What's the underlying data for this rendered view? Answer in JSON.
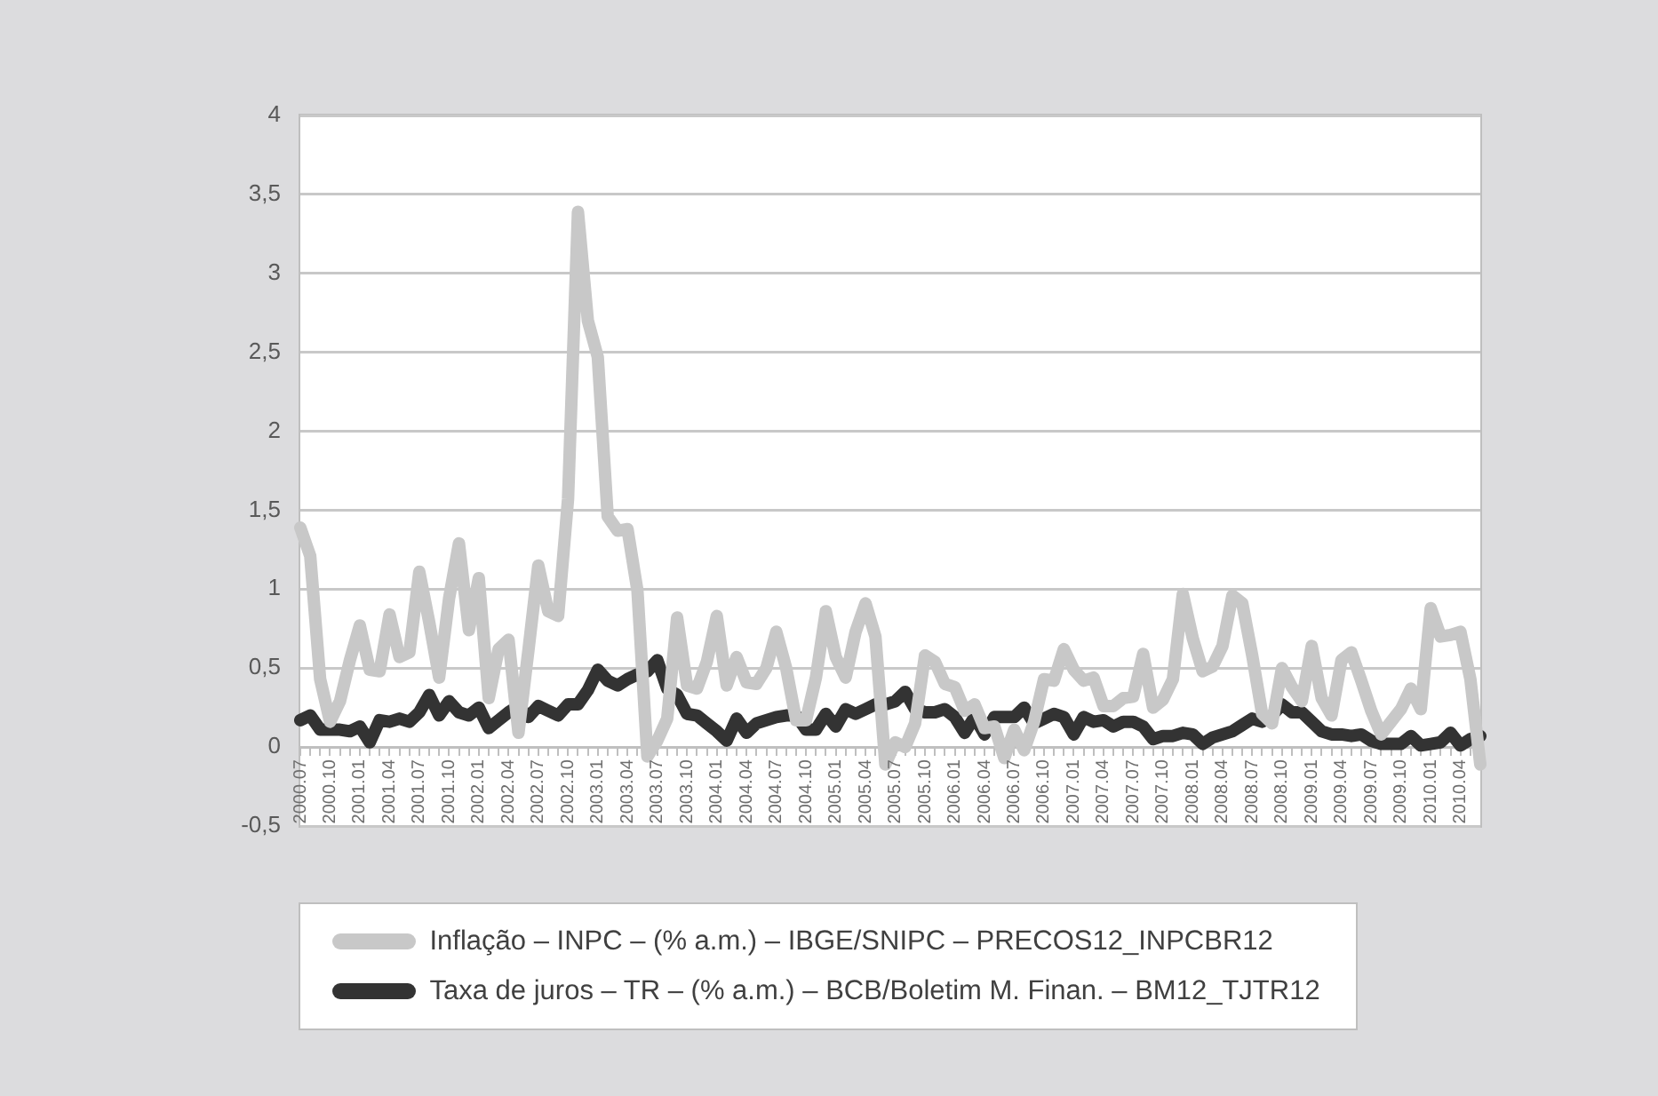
{
  "chart_data": {
    "type": "line",
    "categories": [
      "2000.07",
      null,
      null,
      "2000.10",
      null,
      null,
      "2001.01",
      null,
      null,
      "2001.04",
      null,
      null,
      "2001.07",
      null,
      null,
      "2001.10",
      null,
      null,
      "2002.01",
      null,
      null,
      "2002.04",
      null,
      null,
      "2002.07",
      null,
      null,
      "2002.10",
      null,
      null,
      "2003.01",
      null,
      null,
      "2003.04",
      null,
      null,
      "2003.07",
      null,
      null,
      "2003.10",
      null,
      null,
      "2004.01",
      null,
      null,
      "2004.04",
      null,
      null,
      "2004.07",
      null,
      null,
      "2004.10",
      null,
      null,
      "2005.01",
      null,
      null,
      "2005.04",
      null,
      null,
      "2005.07",
      null,
      null,
      "2005.10",
      null,
      null,
      "2006.01",
      null,
      null,
      "2006.04",
      null,
      null,
      "2006.07",
      null,
      null,
      "2006.10",
      null,
      null,
      "2007.01",
      null,
      null,
      "2007.04",
      null,
      null,
      "2007.07",
      null,
      null,
      "2007.10",
      null,
      null,
      "2008.01",
      null,
      null,
      "2008.04",
      null,
      null,
      "2008.07",
      null,
      null,
      "2008.10",
      null,
      null,
      "2009.01",
      null,
      null,
      "2009.04",
      null,
      null,
      "2009.07",
      null,
      null,
      "2009.10",
      null,
      null,
      "2010.01",
      null,
      null,
      "2010.04",
      null,
      null
    ],
    "series": [
      {
        "name": "Inflação – INPC – (% a.m.) – IBGE/SNIPC – PRECOS12_INPCBR12",
        "color": "#c8c8c8",
        "values": [
          1.39,
          1.21,
          0.43,
          0.16,
          0.29,
          0.55,
          0.77,
          0.49,
          0.48,
          0.84,
          0.57,
          0.6,
          1.11,
          0.79,
          0.44,
          0.94,
          1.29,
          0.74,
          1.07,
          0.31,
          0.62,
          0.68,
          0.09,
          0.61,
          1.15,
          0.86,
          0.83,
          1.57,
          3.39,
          2.7,
          2.47,
          1.46,
          1.37,
          1.38,
          0.99,
          -0.06,
          0.04,
          0.18,
          0.82,
          0.39,
          0.37,
          0.54,
          0.83,
          0.39,
          0.57,
          0.41,
          0.4,
          0.5,
          0.73,
          0.5,
          0.17,
          0.17,
          0.44,
          0.86,
          0.57,
          0.44,
          0.73,
          0.91,
          0.7,
          -0.11,
          0.03,
          0.0,
          0.15,
          0.58,
          0.54,
          0.4,
          0.38,
          0.23,
          0.27,
          0.12,
          0.13,
          -0.07,
          0.11,
          -0.02,
          0.16,
          0.43,
          0.42,
          0.62,
          0.49,
          0.42,
          0.44,
          0.26,
          0.26,
          0.31,
          0.32,
          0.59,
          0.25,
          0.3,
          0.43,
          0.97,
          0.69,
          0.48,
          0.51,
          0.64,
          0.96,
          0.91,
          0.58,
          0.21,
          0.15,
          0.5,
          0.38,
          0.29,
          0.64,
          0.31,
          0.2,
          0.55,
          0.6,
          0.42,
          0.23,
          0.08,
          0.16,
          0.24,
          0.37,
          0.24,
          0.88,
          0.7,
          0.71,
          0.73,
          0.43,
          -0.11
        ]
      },
      {
        "name": "Taxa de juros – TR – (% a.m.) – BCB/Boletim M. Finan. – BM12_TJTR12",
        "color": "#333333",
        "values": [
          0.17,
          0.2,
          0.11,
          0.11,
          0.11,
          0.1,
          0.13,
          0.03,
          0.17,
          0.16,
          0.18,
          0.16,
          0.22,
          0.33,
          0.2,
          0.29,
          0.22,
          0.2,
          0.25,
          0.12,
          0.17,
          0.22,
          0.26,
          0.19,
          0.26,
          0.23,
          0.2,
          0.27,
          0.27,
          0.36,
          0.49,
          0.42,
          0.39,
          0.43,
          0.46,
          0.48,
          0.55,
          0.37,
          0.33,
          0.21,
          0.2,
          0.15,
          0.1,
          0.04,
          0.18,
          0.09,
          0.15,
          0.17,
          0.19,
          0.2,
          0.2,
          0.11,
          0.11,
          0.21,
          0.13,
          0.24,
          0.21,
          0.24,
          0.27,
          0.27,
          0.29,
          0.35,
          0.24,
          0.22,
          0.22,
          0.24,
          0.19,
          0.09,
          0.19,
          0.08,
          0.19,
          0.19,
          0.19,
          0.25,
          0.15,
          0.18,
          0.21,
          0.19,
          0.08,
          0.19,
          0.16,
          0.17,
          0.13,
          0.16,
          0.16,
          0.13,
          0.05,
          0.07,
          0.07,
          0.09,
          0.08,
          0.02,
          0.06,
          0.08,
          0.1,
          0.14,
          0.18,
          0.16,
          0.2,
          0.27,
          0.22,
          0.22,
          0.16,
          0.1,
          0.08,
          0.08,
          0.07,
          0.08,
          0.04,
          0.02,
          0.02,
          0.02,
          0.07,
          0.01,
          0.02,
          0.03,
          0.09,
          0.01,
          0.05,
          0.07
        ]
      }
    ],
    "ylim": [
      -0.5,
      4
    ],
    "yticks": [
      {
        "value": -0.5,
        "label": "-0,5"
      },
      0,
      {
        "value": 0.5,
        "label": "0,5"
      },
      1,
      {
        "value": 1.5,
        "label": "1,5"
      },
      2,
      {
        "value": 2.5,
        "label": "2,5"
      },
      3,
      {
        "value": 3.5,
        "label": "3,5"
      },
      4
    ],
    "grid": "y",
    "legend": "bottom"
  }
}
